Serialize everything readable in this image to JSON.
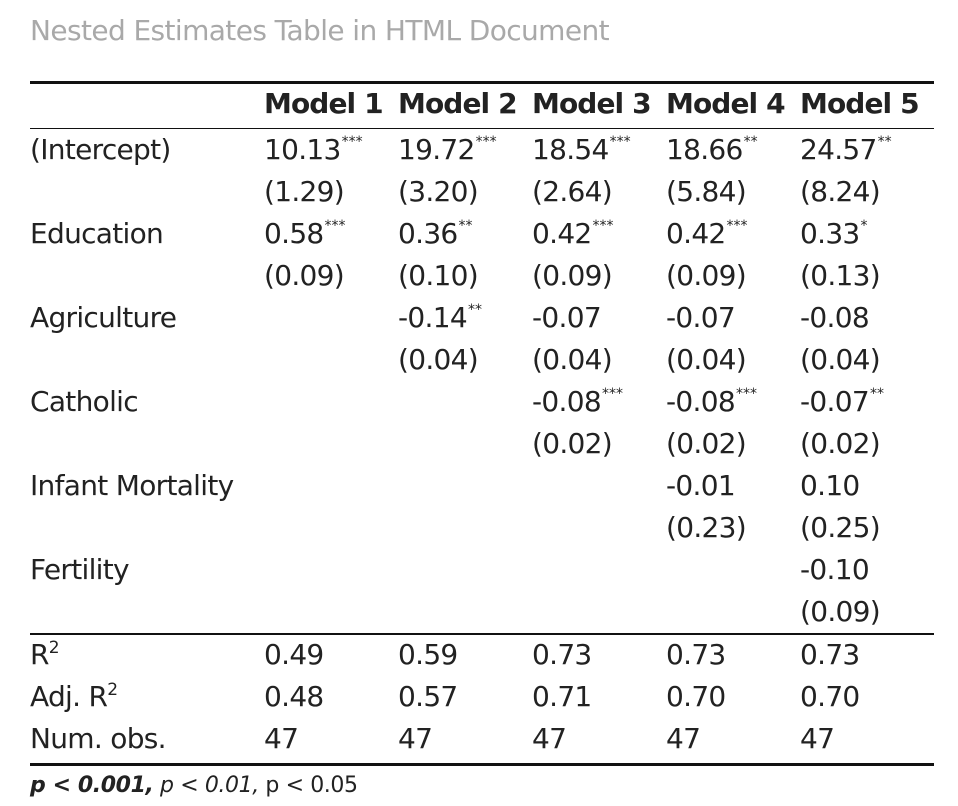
{
  "document_title": "Nested Estimates Table in HTML Document",
  "table": {
    "header": [
      "",
      "Model 1",
      "Model 2",
      "Model 3",
      "Model 4",
      "Model 5"
    ],
    "rows": [
      {
        "label": "(Intercept)",
        "estimates": [
          {
            "value": "10.13",
            "stars": "***"
          },
          {
            "value": "19.72",
            "stars": "***"
          },
          {
            "value": "18.54",
            "stars": "***"
          },
          {
            "value": "18.66",
            "stars": "**"
          },
          {
            "value": "24.57",
            "stars": "**"
          }
        ],
        "std_errors": [
          "(1.29)",
          "(3.20)",
          "(2.64)",
          "(5.84)",
          "(8.24)"
        ]
      },
      {
        "label": "Education",
        "estimates": [
          {
            "value": "0.58",
            "stars": "***"
          },
          {
            "value": "0.36",
            "stars": "**"
          },
          {
            "value": "0.42",
            "stars": "***"
          },
          {
            "value": "0.42",
            "stars": "***"
          },
          {
            "value": "0.33",
            "stars": "*"
          }
        ],
        "std_errors": [
          "(0.09)",
          "(0.10)",
          "(0.09)",
          "(0.09)",
          "(0.13)"
        ]
      },
      {
        "label": "Agriculture",
        "estimates": [
          {
            "value": "",
            "stars": ""
          },
          {
            "value": "-0.14",
            "stars": "**"
          },
          {
            "value": "-0.07",
            "stars": ""
          },
          {
            "value": "-0.07",
            "stars": ""
          },
          {
            "value": "-0.08",
            "stars": ""
          }
        ],
        "std_errors": [
          "",
          "(0.04)",
          "(0.04)",
          "(0.04)",
          "(0.04)"
        ]
      },
      {
        "label": "Catholic",
        "estimates": [
          {
            "value": "",
            "stars": ""
          },
          {
            "value": "",
            "stars": ""
          },
          {
            "value": "-0.08",
            "stars": "***"
          },
          {
            "value": "-0.08",
            "stars": "***"
          },
          {
            "value": "-0.07",
            "stars": "**"
          }
        ],
        "std_errors": [
          "",
          "",
          "(0.02)",
          "(0.02)",
          "(0.02)"
        ]
      },
      {
        "label": "Infant Mortality",
        "estimates": [
          {
            "value": "",
            "stars": ""
          },
          {
            "value": "",
            "stars": ""
          },
          {
            "value": "",
            "stars": ""
          },
          {
            "value": "-0.01",
            "stars": ""
          },
          {
            "value": "0.10",
            "stars": ""
          }
        ],
        "std_errors": [
          "",
          "",
          "",
          "(0.23)",
          "(0.25)"
        ]
      },
      {
        "label": "Fertility",
        "estimates": [
          {
            "value": "",
            "stars": ""
          },
          {
            "value": "",
            "stars": ""
          },
          {
            "value": "",
            "stars": ""
          },
          {
            "value": "",
            "stars": ""
          },
          {
            "value": "-0.10",
            "stars": ""
          }
        ],
        "std_errors": [
          "",
          "",
          "",
          "",
          "(0.09)"
        ]
      }
    ],
    "stats": [
      {
        "label": "R",
        "sup": "2",
        "values": [
          "0.49",
          "0.59",
          "0.73",
          "0.73",
          "0.73"
        ]
      },
      {
        "label": "Adj. R",
        "sup": "2",
        "values": [
          "0.48",
          "0.57",
          "0.71",
          "0.70",
          "0.70"
        ]
      },
      {
        "label": "Num. obs.",
        "sup": "",
        "values": [
          "47",
          "47",
          "47",
          "47",
          "47"
        ]
      }
    ]
  },
  "footnote": {
    "part1": "p < 0.001,",
    "part2": "p < 0.01,",
    "part3": "p < 0.05"
  }
}
